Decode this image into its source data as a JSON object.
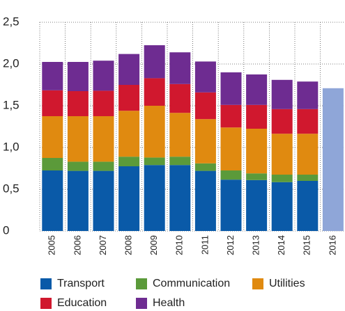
{
  "chart_data": {
    "type": "stacked_bar",
    "categories": [
      "2005",
      "2006",
      "2007",
      "2008",
      "2009",
      "2010",
      "2011",
      "2012",
      "2013",
      "2014",
      "2015",
      "2016"
    ],
    "series": [
      {
        "name": "Transport",
        "color": "#0a5aa8",
        "values": [
          0.725,
          0.72,
          0.72,
          0.775,
          0.79,
          0.79,
          0.72,
          0.615,
          0.61,
          0.585,
          0.6,
          null
        ]
      },
      {
        "name": "Communication",
        "color": "#5b9a3a",
        "values": [
          0.15,
          0.11,
          0.11,
          0.115,
          0.09,
          0.1,
          0.09,
          0.11,
          0.08,
          0.09,
          0.075,
          null
        ]
      },
      {
        "name": "Utilities",
        "color": "#e08a10",
        "values": [
          0.5,
          0.545,
          0.545,
          0.55,
          0.62,
          0.525,
          0.53,
          0.515,
          0.535,
          0.49,
          0.49,
          null
        ]
      },
      {
        "name": "Education",
        "color": "#d0182e",
        "values": [
          0.31,
          0.3,
          0.305,
          0.31,
          0.33,
          0.345,
          0.32,
          0.27,
          0.285,
          0.295,
          0.295,
          null
        ]
      },
      {
        "name": "Health",
        "color": "#6e2c91",
        "values": [
          0.34,
          0.35,
          0.36,
          0.37,
          0.395,
          0.38,
          0.37,
          0.39,
          0.365,
          0.35,
          0.33,
          null
        ]
      },
      {
        "color": "#8fa6d8",
        "values": [
          null,
          null,
          null,
          null,
          null,
          null,
          null,
          null,
          null,
          null,
          null,
          1.71
        ]
      }
    ],
    "ylim": [
      0,
      2.5
    ],
    "yticks": [
      0,
      {
        "value": 0.5,
        "label": "0,5"
      },
      {
        "value": 1,
        "label": "1,0"
      },
      {
        "value": 1.5,
        "label": "1,5"
      },
      {
        "value": 2,
        "label": "2,0"
      },
      {
        "value": 2.5,
        "label": "2,5"
      }
    ],
    "grid": true
  }
}
